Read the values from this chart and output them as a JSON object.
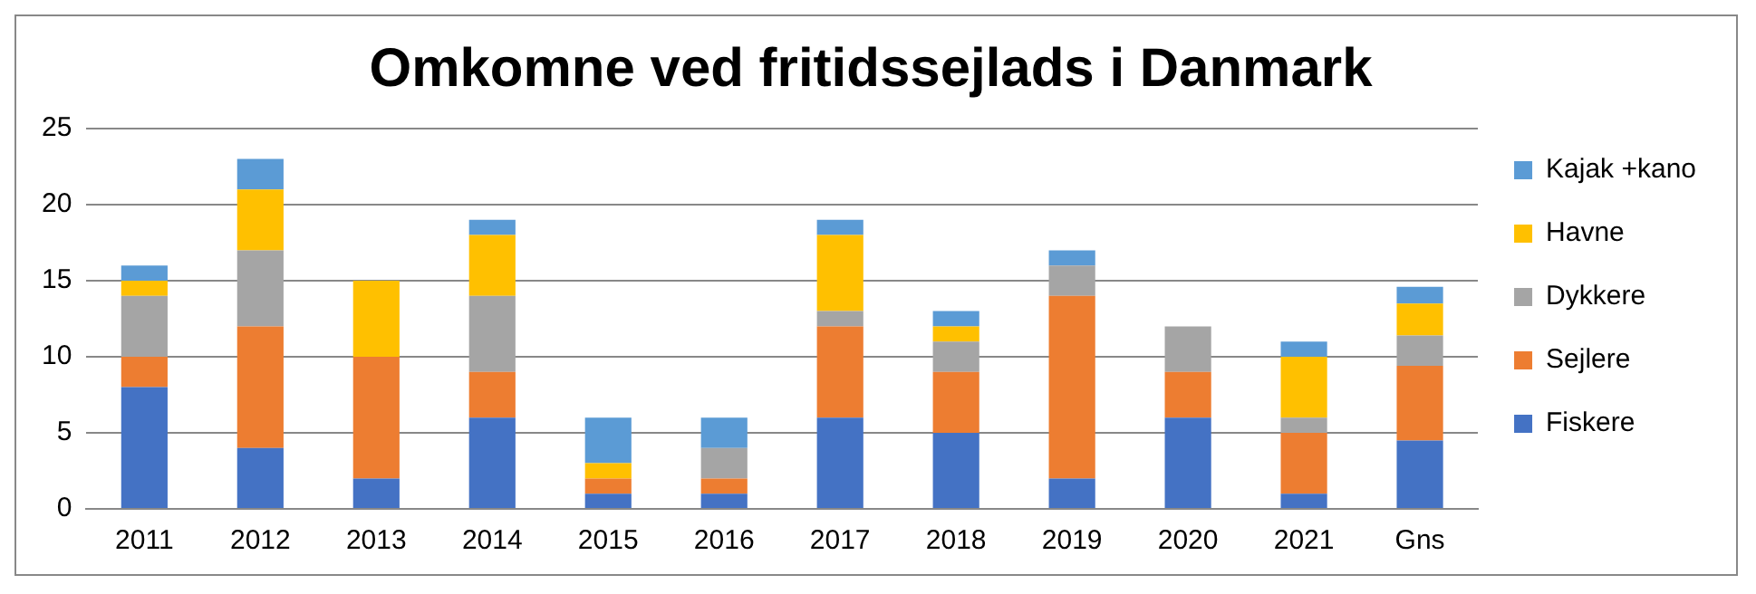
{
  "chart_data": {
    "type": "bar",
    "title": "Omkomne ved fritidssejlads i Danmark",
    "stacked": true,
    "categories": [
      "2011",
      "2012",
      "2013",
      "2014",
      "2015",
      "2016",
      "2017",
      "2018",
      "2019",
      "2020",
      "2021",
      "Gns"
    ],
    "series": [
      {
        "name": "Fiskere",
        "color": "#4472c4",
        "values": [
          8,
          4,
          2,
          6,
          1,
          1,
          6,
          5,
          2,
          6,
          1,
          4.5
        ]
      },
      {
        "name": "Sejlere",
        "color": "#ed7d31",
        "values": [
          2,
          8,
          8,
          3,
          1,
          1,
          6,
          4,
          12,
          3,
          4,
          4.9
        ]
      },
      {
        "name": "Dykkere",
        "color": "#a5a5a5",
        "values": [
          4,
          5,
          0,
          5,
          0,
          2,
          1,
          2,
          2,
          3,
          1,
          2.0
        ]
      },
      {
        "name": "Havne",
        "color": "#ffc000",
        "values": [
          1,
          4,
          5,
          4,
          1,
          0,
          5,
          1,
          0,
          0,
          4,
          2.1
        ]
      },
      {
        "name": "Kajak +kano",
        "color": "#5b9bd5",
        "values": [
          1,
          2,
          0,
          1,
          3,
          2,
          1,
          1,
          1,
          0,
          1,
          1.1
        ]
      }
    ],
    "ylim": [
      0,
      25
    ],
    "yticks": [
      0,
      5,
      10,
      15,
      20,
      25
    ],
    "grid": "y",
    "legend": "right"
  }
}
